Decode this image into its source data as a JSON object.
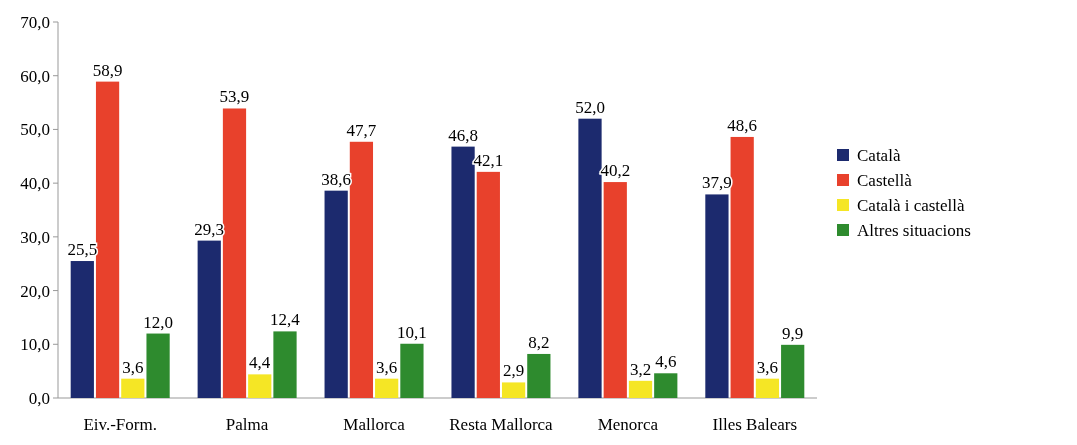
{
  "chart_data": {
    "type": "bar",
    "categories": [
      "Eiv.-Form.",
      "Palma",
      "Mallorca",
      "Resta Mallorca",
      "Menorca",
      "Illes Balears"
    ],
    "series": [
      {
        "name": "Català",
        "color": "#1c2a6e",
        "values": [
          25.5,
          29.3,
          38.6,
          46.8,
          52.0,
          37.9
        ],
        "value_labels": [
          "25,5",
          "29,3",
          "38,6",
          "46,8",
          "52,0",
          "37,9"
        ]
      },
      {
        "name": "Castellà",
        "color": "#e8412c",
        "values": [
          58.9,
          53.9,
          47.7,
          42.1,
          40.2,
          48.6
        ],
        "value_labels": [
          "58,9",
          "53,9",
          "47,7",
          "42,1",
          "40,2",
          "48,6"
        ]
      },
      {
        "name": "Català i castellà",
        "color": "#f5e625",
        "values": [
          3.6,
          4.4,
          3.6,
          2.9,
          3.2,
          3.6
        ],
        "value_labels": [
          "3,6",
          "4,4",
          "3,6",
          "2,9",
          "3,2",
          "3,6"
        ]
      },
      {
        "name": "Altres situacions",
        "color": "#2e8b2e",
        "values": [
          12.0,
          12.4,
          10.1,
          8.2,
          4.6,
          9.9
        ],
        "value_labels": [
          "12,0",
          "12,4",
          "10,1",
          "8,2",
          "4,6",
          "9,9"
        ]
      }
    ],
    "ylim": [
      0,
      70
    ],
    "yticks": [
      {
        "value": 0,
        "label": "0,0"
      },
      {
        "value": 10,
        "label": "10,0"
      },
      {
        "value": 20,
        "label": "20,0"
      },
      {
        "value": 30,
        "label": "30,0"
      },
      {
        "value": 40,
        "label": "40,0"
      },
      {
        "value": 50,
        "label": "50,0"
      },
      {
        "value": 60,
        "label": "60,0"
      },
      {
        "value": 70,
        "label": "70,0"
      }
    ],
    "legend": "right"
  }
}
